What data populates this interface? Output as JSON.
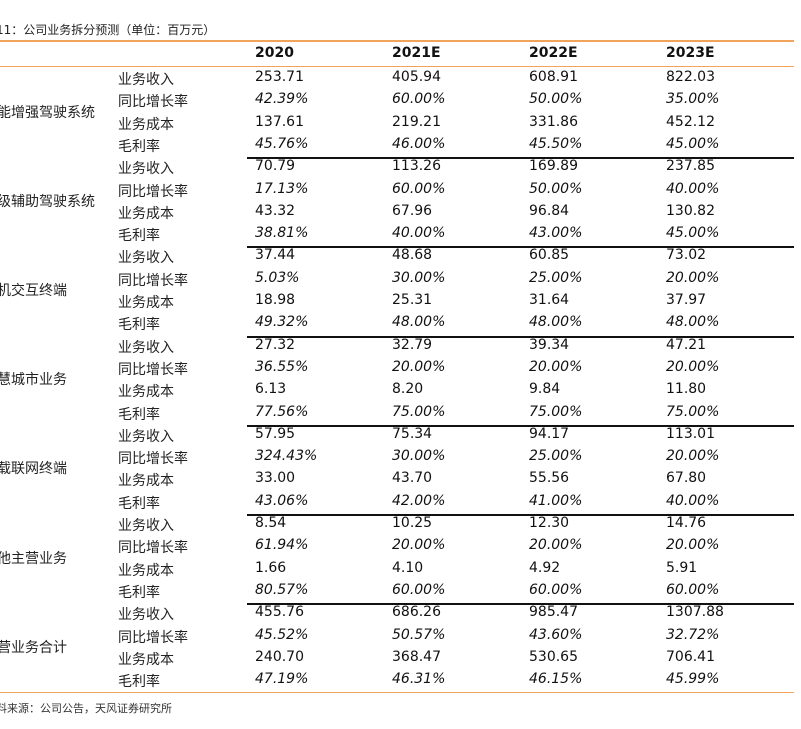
{
  "caption": "11：公司业务拆分预测（单位：百万元）",
  "columns": [
    "2020",
    "2021E",
    "2022E",
    "2023E"
  ],
  "segments": [
    {
      "name": "能增强驾驶系统",
      "rows": [
        {
          "label": "业务收入",
          "values": [
            "253.71",
            "405.94",
            "608.91",
            "822.03"
          ]
        },
        {
          "label": "同比增长率",
          "values": [
            "42.39%",
            "60.00%",
            "50.00%",
            "35.00%"
          ]
        },
        {
          "label": "业务成本",
          "values": [
            "137.61",
            "219.21",
            "331.86",
            "452.12"
          ]
        },
        {
          "label": "毛利率",
          "values": [
            "45.76%",
            "46.00%",
            "45.50%",
            "45.00%"
          ]
        }
      ]
    },
    {
      "name": "级辅助驾驶系统",
      "rows": [
        {
          "label": "业务收入",
          "values": [
            "70.79",
            "113.26",
            "169.89",
            "237.85"
          ]
        },
        {
          "label": "同比增长率",
          "values": [
            "17.13%",
            "60.00%",
            "50.00%",
            "40.00%"
          ]
        },
        {
          "label": "业务成本",
          "values": [
            "43.32",
            "67.96",
            "96.84",
            "130.82"
          ]
        },
        {
          "label": "毛利率",
          "values": [
            "38.81%",
            "40.00%",
            "43.00%",
            "45.00%"
          ]
        }
      ]
    },
    {
      "name": "机交互终端",
      "rows": [
        {
          "label": "业务收入",
          "values": [
            "37.44",
            "48.68",
            "60.85",
            "73.02"
          ]
        },
        {
          "label": "同比增长率",
          "values": [
            "5.03%",
            "30.00%",
            "25.00%",
            "20.00%"
          ]
        },
        {
          "label": "业务成本",
          "values": [
            "18.98",
            "25.31",
            "31.64",
            "37.97"
          ]
        },
        {
          "label": "毛利率",
          "values": [
            "49.32%",
            "48.00%",
            "48.00%",
            "48.00%"
          ]
        }
      ]
    },
    {
      "name": "慧城市业务",
      "rows": [
        {
          "label": "业务收入",
          "values": [
            "27.32",
            "32.79",
            "39.34",
            "47.21"
          ]
        },
        {
          "label": "同比增长率",
          "values": [
            "36.55%",
            "20.00%",
            "20.00%",
            "20.00%"
          ]
        },
        {
          "label": "业务成本",
          "values": [
            "6.13",
            "8.20",
            "9.84",
            "11.80"
          ]
        },
        {
          "label": "毛利率",
          "values": [
            "77.56%",
            "75.00%",
            "75.00%",
            "75.00%"
          ]
        }
      ]
    },
    {
      "name": "载联网终端",
      "rows": [
        {
          "label": "业务收入",
          "values": [
            "57.95",
            "75.34",
            "94.17",
            "113.01"
          ]
        },
        {
          "label": "同比增长率",
          "values": [
            "324.43%",
            "30.00%",
            "25.00%",
            "20.00%"
          ]
        },
        {
          "label": "业务成本",
          "values": [
            "33.00",
            "43.70",
            "55.56",
            "67.80"
          ]
        },
        {
          "label": "毛利率",
          "values": [
            "43.06%",
            "42.00%",
            "41.00%",
            "40.00%"
          ]
        }
      ]
    },
    {
      "name": "他主营业务",
      "rows": [
        {
          "label": "业务收入",
          "values": [
            "8.54",
            "10.25",
            "12.30",
            "14.76"
          ]
        },
        {
          "label": "同比增长率",
          "values": [
            "61.94%",
            "20.00%",
            "20.00%",
            "20.00%"
          ]
        },
        {
          "label": "业务成本",
          "values": [
            "1.66",
            "4.10",
            "4.92",
            "5.91"
          ]
        },
        {
          "label": "毛利率",
          "values": [
            "80.57%",
            "60.00%",
            "60.00%",
            "60.00%"
          ]
        }
      ]
    },
    {
      "name": "营业务合计",
      "rows": [
        {
          "label": "业务收入",
          "values": [
            "455.76",
            "686.26",
            "985.47",
            "1307.88"
          ]
        },
        {
          "label": "同比增长率",
          "values": [
            "45.52%",
            "50.57%",
            "43.60%",
            "32.72%"
          ]
        },
        {
          "label": "业务成本",
          "values": [
            "240.70",
            "368.47",
            "530.65",
            "706.41"
          ]
        },
        {
          "label": "毛利率",
          "values": [
            "47.19%",
            "46.31%",
            "46.15%",
            "45.99%"
          ]
        }
      ]
    }
  ],
  "source": "料来源：公司公告，天风证券研究所"
}
